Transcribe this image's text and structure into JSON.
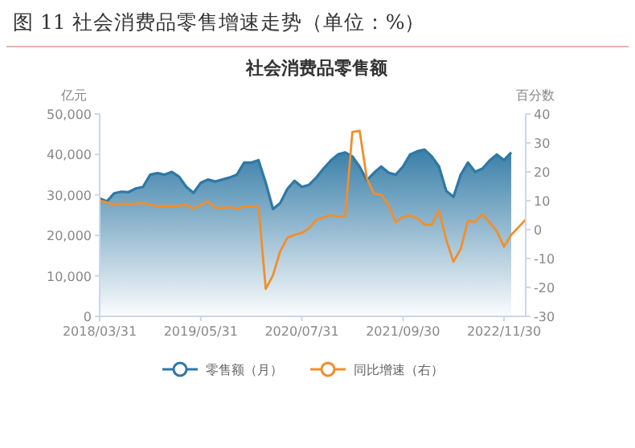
{
  "chart_data": {
    "type": "line",
    "title": "图 11 社会消费品零售增速走势（单位：%）",
    "subtitle": "社会消费品零售额",
    "ylabel": "亿元",
    "y2label": "百分数",
    "categories": [
      "2018/03/31",
      null,
      null,
      null,
      null,
      null,
      null,
      null,
      null,
      null,
      null,
      null,
      null,
      null,
      "2019/05/31",
      null,
      null,
      null,
      null,
      null,
      null,
      null,
      null,
      null,
      null,
      null,
      null,
      null,
      "2020/07/31",
      null,
      null,
      null,
      null,
      null,
      null,
      null,
      null,
      null,
      null,
      null,
      null,
      null,
      "2021/09/30",
      null,
      null,
      null,
      null,
      null,
      null,
      null,
      null,
      null,
      null,
      null,
      null,
      null,
      "2022/11/30",
      null,
      null,
      null
    ],
    "ylim": [
      0,
      50000
    ],
    "yticks": [
      {
        "value": 0,
        "label": "0"
      },
      {
        "value": 10000,
        "label": "10,000"
      },
      {
        "value": 20000,
        "label": "20,000"
      },
      {
        "value": 30000,
        "label": "30,000"
      },
      {
        "value": 40000,
        "label": "40,000"
      },
      {
        "value": 50000,
        "label": "50,000"
      }
    ],
    "y2lim": [
      -30,
      40
    ],
    "y2ticks": [
      -30,
      -20,
      -10,
      0,
      10,
      20,
      30,
      40
    ],
    "legend": "bottom",
    "series": [
      {
        "name": "零售额（月）",
        "type": "area",
        "color": "#2f78a4",
        "values": [
          29100,
          28400,
          30400,
          30800,
          30700,
          31600,
          32000,
          35000,
          35400,
          35000,
          35700,
          34500,
          32000,
          30500,
          33000,
          33800,
          33300,
          33800,
          34300,
          35000,
          38000,
          38000,
          38600,
          33000,
          26500,
          28000,
          31500,
          33500,
          32000,
          32500,
          34300,
          36500,
          38500,
          40000,
          40500,
          39500,
          37000,
          33600,
          35500,
          37000,
          35500,
          35000,
          37000,
          40000,
          40800,
          41200,
          39500,
          37000,
          31000,
          29500,
          35000,
          38000,
          35700,
          36500,
          38500,
          40000,
          38600,
          40500,
          null,
          null
        ]
      },
      {
        "name": "同比增速（右）",
        "axis": "y2",
        "color": "#f28e2b",
        "values": [
          10.1,
          9.4,
          8.5,
          9.0,
          8.8,
          9.0,
          9.2,
          8.6,
          8.1,
          8.2,
          8.2,
          8.2,
          8.7,
          7.2,
          8.6,
          9.8,
          7.6,
          7.5,
          7.8,
          7.2,
          8.0,
          8.0,
          8.0,
          -20.5,
          -15.8,
          -7.5,
          -2.8,
          -1.8,
          -1.1,
          0.5,
          3.3,
          4.3,
          5.0,
          4.6,
          4.6,
          33.8,
          34.2,
          17.7,
          12.4,
          12.1,
          8.5,
          2.5,
          4.4,
          4.9,
          3.9,
          1.7,
          1.7,
          6.7,
          -3.5,
          -11.1,
          -6.7,
          3.1,
          2.7,
          5.4,
          2.5,
          -0.5,
          -5.9,
          -1.8,
          0.8,
          3.5
        ]
      }
    ]
  }
}
